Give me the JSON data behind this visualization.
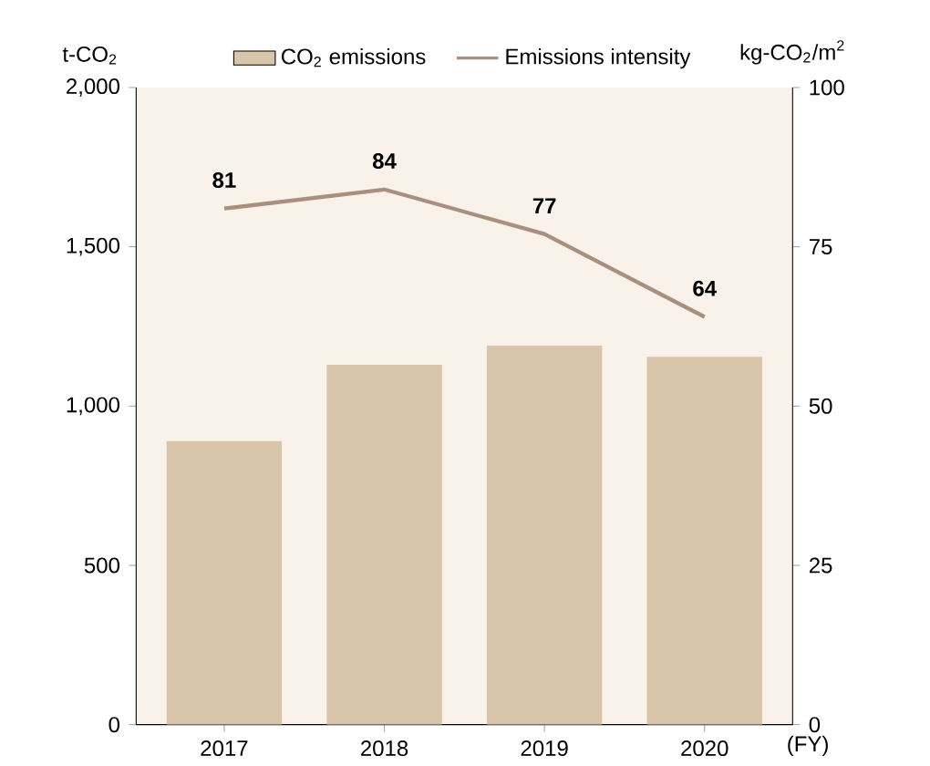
{
  "chart_data": {
    "type": "bar",
    "categories": [
      "2017",
      "2018",
      "2019",
      "2020"
    ],
    "xlabel": "(FY)",
    "ylabel": "t-CO$_{2}$",
    "y2label": "kg-CO$_{2}$/m$^{2}$",
    "series": [
      {
        "name": "CO$_{2}$ emissions",
        "color": "#d9c6aa",
        "values": [
          890,
          1130,
          1190,
          1155
        ]
      },
      {
        "name": "Emissions intensity",
        "type": "line",
        "axis": "y2",
        "color": "#a88f7e",
        "values": [
          81,
          84,
          77,
          64
        ],
        "value_labels": [
          "81",
          "84",
          "77",
          "64"
        ]
      }
    ],
    "ylim": [
      0,
      2000
    ],
    "yticks": [
      0,
      {
        "value": 500,
        "label": "500"
      },
      {
        "value": 1000,
        "label": "1,000"
      },
      {
        "value": 1500,
        "label": "1,500"
      },
      {
        "value": 2000,
        "label": "2,000"
      }
    ],
    "y2lim": [
      0,
      100
    ],
    "y2ticks": [
      0,
      25,
      50,
      75,
      100
    ],
    "legend": "top",
    "grid": false
  }
}
